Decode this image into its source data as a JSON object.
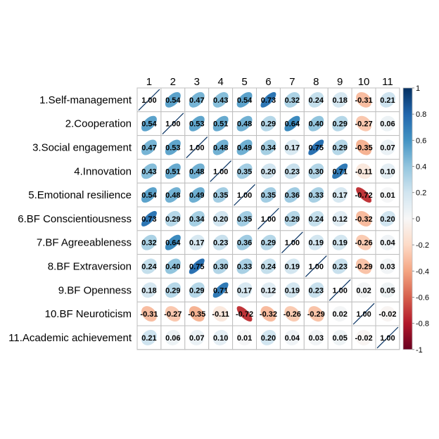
{
  "chart_data": {
    "type": "heatmap",
    "title": "",
    "xlabel": "",
    "ylabel": "",
    "row_labels": [
      "1.Self-management",
      "2.Cooperation",
      "3.Social engagement",
      "4.Innovation",
      "5.Emotional resilience",
      "6.BF Conscientiousness",
      "7.BF Agreeableness",
      "8.BF Extraversion",
      "9.BF Openness",
      "10.BF Neuroticism",
      "11.Academic achievement"
    ],
    "col_labels": [
      "1",
      "2",
      "3",
      "4",
      "5",
      "6",
      "7",
      "8",
      "9",
      "10",
      "11"
    ],
    "matrix": [
      [
        1.0,
        0.54,
        0.47,
        0.43,
        0.54,
        0.73,
        0.32,
        0.24,
        0.18,
        -0.31,
        0.21
      ],
      [
        0.54,
        1.0,
        0.53,
        0.51,
        0.48,
        0.29,
        0.64,
        0.4,
        0.29,
        -0.27,
        0.06
      ],
      [
        0.47,
        0.53,
        1.0,
        0.48,
        0.49,
        0.34,
        0.17,
        0.75,
        0.29,
        -0.35,
        0.07
      ],
      [
        0.43,
        0.51,
        0.48,
        1.0,
        0.35,
        0.2,
        0.23,
        0.3,
        0.71,
        -0.11,
        0.1
      ],
      [
        0.54,
        0.48,
        0.49,
        0.35,
        1.0,
        0.35,
        0.36,
        0.33,
        0.17,
        -0.72,
        0.01
      ],
      [
        0.73,
        0.29,
        0.34,
        0.2,
        0.35,
        1.0,
        0.29,
        0.24,
        0.12,
        -0.32,
        0.2
      ],
      [
        0.32,
        0.64,
        0.17,
        0.23,
        0.36,
        0.29,
        1.0,
        0.19,
        0.19,
        -0.26,
        0.04
      ],
      [
        0.24,
        0.4,
        0.75,
        0.3,
        0.33,
        0.24,
        0.19,
        1.0,
        0.23,
        -0.29,
        0.03
      ],
      [
        0.18,
        0.29,
        0.29,
        0.71,
        0.17,
        0.12,
        0.19,
        0.23,
        1.0,
        0.02,
        0.05
      ],
      [
        -0.31,
        -0.27,
        -0.35,
        -0.11,
        -0.72,
        -0.32,
        -0.26,
        -0.29,
        0.02,
        1.0,
        -0.02
      ],
      [
        0.21,
        0.06,
        0.07,
        0.1,
        0.01,
        0.2,
        0.04,
        0.03,
        0.05,
        -0.02,
        1.0
      ]
    ],
    "colorbar_ticks": [
      "1",
      "0.8",
      "0.6",
      "0.4",
      "0.2",
      "0",
      "-0.2",
      "-0.4",
      "-0.6",
      "-0.8",
      "-1"
    ],
    "value_range": [
      -1,
      1
    ],
    "colors": {
      "negative_end": "#67001f",
      "positive_end": "#053061",
      "mid": "#f7f7f7",
      "grid": "#bfbfbf"
    },
    "legend_position": "right"
  }
}
